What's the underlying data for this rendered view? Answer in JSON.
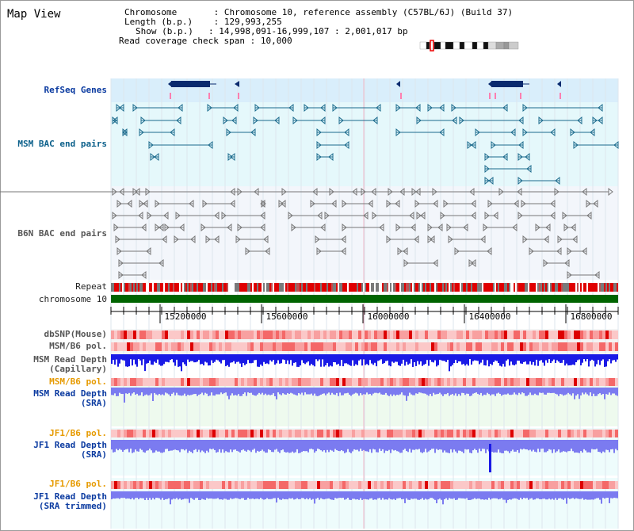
{
  "map": {
    "title": "Map View",
    "info": {
      "chromosome_label": "Chromosome",
      "chromosome_value": "Chromosome 10, reference assembly (C57BL/6J) (Build 37)",
      "length_label": "Length (b.p.)",
      "length_value": "129,993,255",
      "show_label": "Show (b.p.)",
      "show_value": "14,998,091-16,999,107 : 2,001,017 bp",
      "coverage_label": "Read coverage check span",
      "coverage_value": "10,000"
    }
  },
  "tracks": {
    "refseq": "RefSeq Genes",
    "msm_bac": "MSM BAC end pairs",
    "b6n_bac": "B6N BAC end pairs",
    "repeat": "Repeat",
    "chromosome": "chromosome 10",
    "dbsnp": "dbSNP(Mouse)",
    "msm_b6_pol": "MSM/B6 pol.",
    "msm_depth_cap": "MSM Read Depth\n(Capillary)",
    "msm_b6_pol_sra": "MSM/B6 pol.",
    "msm_depth_sra": "MSM Read Depth\n(SRA)",
    "jf1_b6_pol": "JF1/B6 pol.",
    "jf1_depth_sra": "JF1 Read Depth\n(SRA)",
    "jf1_b6_pol_trim": "JF1/B6 pol.",
    "jf1_depth_trim": "JF1 Read Depth\n(SRA trimmed)"
  },
  "axis": {
    "ticks": [
      "15200000",
      "15600000",
      "16000000",
      "16400000",
      "16800000"
    ]
  },
  "colors": {
    "refseq_band": "#d9eefb",
    "msm_band": "#e5f8fb",
    "b6n_band": "#f3f6fb",
    "gene_fill": "#0a2a6e",
    "msm_line": "#1b6a8c",
    "b6n_line": "#777777",
    "chromosome_bar": "#006400",
    "pol_red": "#ee2222",
    "depth_dark": "#1a1ae6",
    "depth_light": "#7b7bf0"
  }
}
